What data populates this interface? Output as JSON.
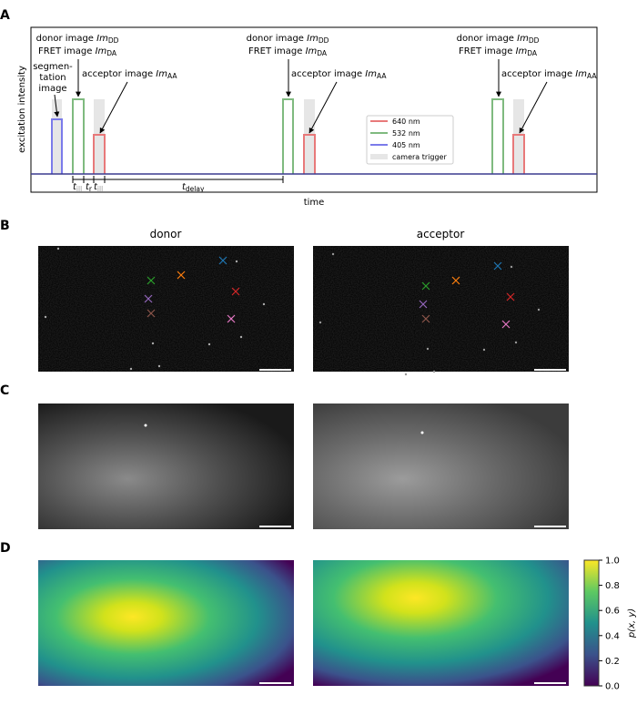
{
  "panels": {
    "A": {
      "label": "A",
      "ylabel": "excitation intensity",
      "xlabel": "time",
      "annotations": {
        "donor": "donor image ",
        "donor_var": "Im",
        "donor_sub": "DD",
        "fret": "FRET image ",
        "fret_var": "Im",
        "fret_sub": "DA",
        "acceptor": "acceptor image ",
        "acceptor_var": "Im",
        "acceptor_sub": "AA",
        "segmentation": [
          "segmen-",
          "tation",
          "image"
        ]
      },
      "timing": {
        "t": "t",
        "ill_sub": "ill",
        "r_sub": "r",
        "delay_sub": "delay"
      },
      "legend": [
        {
          "label": "640 nm",
          "color": "#e8797a"
        },
        {
          "label": "532 nm",
          "color": "#7fba7f"
        },
        {
          "label": "405 nm",
          "color": "#7b7bea"
        },
        {
          "label": "camera trigger",
          "color": "#e6e6e6"
        }
      ],
      "baseline_color": "#3b3b8f"
    },
    "B": {
      "label": "B",
      "titles": [
        "donor",
        "acceptor"
      ],
      "marker_colors": [
        "#1f77b4",
        "#ff7f0e",
        "#2ca02c",
        "#d62728",
        "#9467bd",
        "#8c564b",
        "#e377c2"
      ]
    },
    "C": {
      "label": "C"
    },
    "D": {
      "label": "D",
      "colorbar": {
        "label": "p(x, y)",
        "ticks": [
          "0.0",
          "0.2",
          "0.4",
          "0.6",
          "0.8",
          "1.0"
        ],
        "range": [
          0,
          1
        ],
        "colormap": "viridis"
      }
    }
  }
}
